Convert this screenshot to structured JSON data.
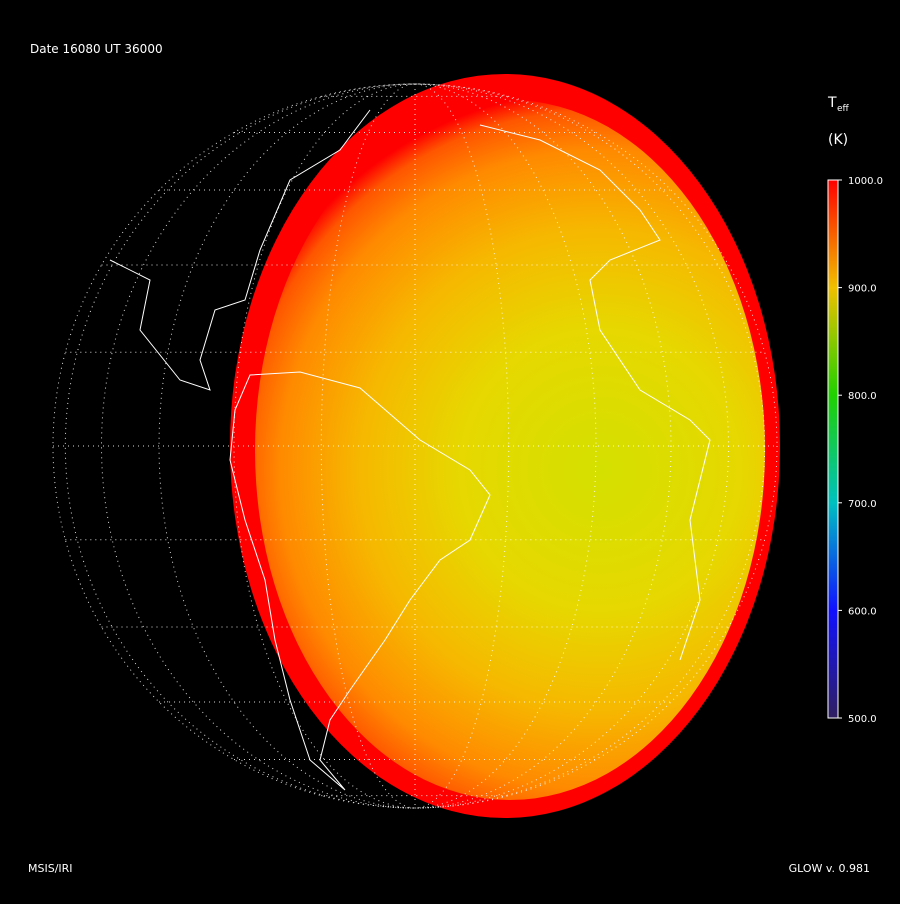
{
  "header": {
    "date_label": "Date 16080  UT 36000"
  },
  "colorbar": {
    "title_main": "T",
    "title_sub": "eff",
    "unit": "(K)",
    "lim": [
      500,
      1000
    ],
    "ticks": [
      {
        "value": 500,
        "label": "500.0"
      },
      {
        "value": 600,
        "label": "600.0"
      },
      {
        "value": 700,
        "label": "700.0"
      },
      {
        "value": 800,
        "label": "800.0"
      },
      {
        "value": 900,
        "label": "900.0"
      },
      {
        "value": 1000,
        "label": "1000.0"
      }
    ]
  },
  "footer": {
    "left": "MSIS/IRI",
    "right": "GLOW v. 0.981"
  }
}
